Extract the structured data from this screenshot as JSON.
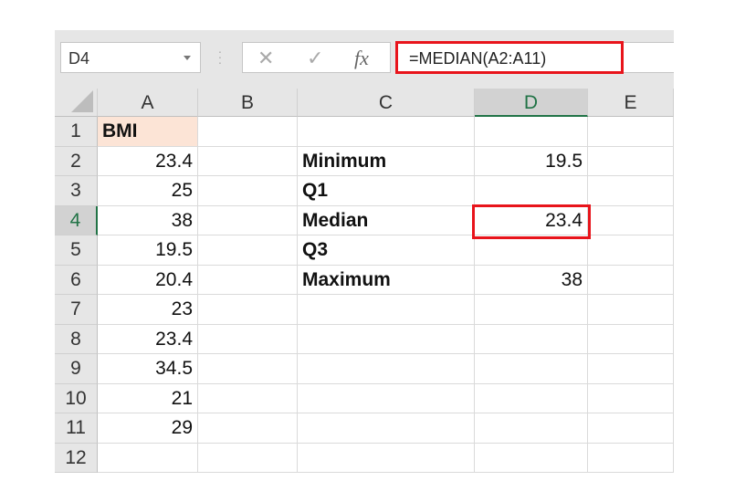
{
  "name_box": {
    "value": "D4"
  },
  "formula_bar": {
    "cancel_icon": "✕",
    "enter_icon": "✓",
    "fx_label": "fx",
    "formula": "=MEDIAN(A2:A11)"
  },
  "columns": [
    "A",
    "B",
    "C",
    "D",
    "E"
  ],
  "selected_column": "D",
  "selected_row": 4,
  "rows": [
    {
      "n": "1",
      "A": "BMI",
      "C": "",
      "D": ""
    },
    {
      "n": "2",
      "A": "23.4",
      "C": "Minimum",
      "D": "19.5"
    },
    {
      "n": "3",
      "A": "25",
      "C": "Q1",
      "D": ""
    },
    {
      "n": "4",
      "A": "38",
      "C": "Median",
      "D": "23.4"
    },
    {
      "n": "5",
      "A": "19.5",
      "C": "Q3",
      "D": ""
    },
    {
      "n": "6",
      "A": "20.4",
      "C": "Maximum",
      "D": "38"
    },
    {
      "n": "7",
      "A": "23",
      "C": "",
      "D": ""
    },
    {
      "n": "8",
      "A": "23.4",
      "C": "",
      "D": ""
    },
    {
      "n": "9",
      "A": "34.5",
      "C": "",
      "D": ""
    },
    {
      "n": "10",
      "A": "21",
      "C": "",
      "D": ""
    },
    {
      "n": "11",
      "A": "29",
      "C": "",
      "D": ""
    },
    {
      "n": "12",
      "A": "",
      "C": "",
      "D": ""
    }
  ],
  "colors": {
    "highlight_red": "#e8141b",
    "header_fill": "#fce4d6",
    "excel_green": "#217346"
  }
}
